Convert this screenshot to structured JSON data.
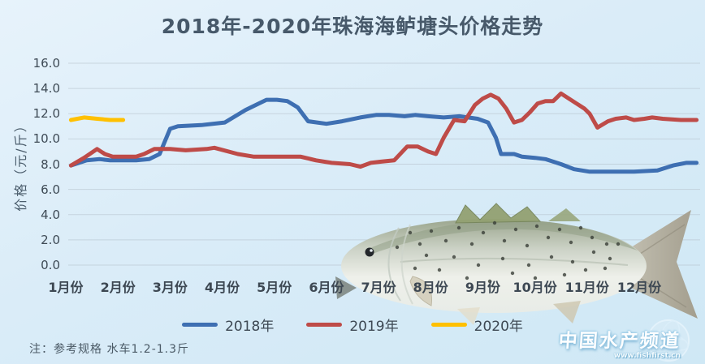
{
  "title": "2018年-2020年珠海海鲈塘头价格走势",
  "y_axis": {
    "title": "价格（元/斤）",
    "tick_labels": [
      "16.0",
      "14.0",
      "12.0",
      "10.0",
      "8.0",
      "6.0",
      "4.0",
      "2.0",
      "0.0"
    ],
    "min": 0,
    "max": 16,
    "step": 2
  },
  "x_axis": {
    "labels": [
      "1月份",
      "2月份",
      "3月份",
      "4月份",
      "5月份",
      "6月份",
      "7月份",
      "8月份",
      "9月份",
      "10月份",
      "11月份",
      "12月份"
    ]
  },
  "note": "注：参考规格  水车1.2-1.3斤",
  "watermark": {
    "site_name": "中国水产频道",
    "site_url": "www.fishfirst.cn"
  },
  "chart_data": {
    "type": "line",
    "title": "2018年-2020年珠海海鲈塘头价格走势",
    "ylabel": "价格（元/斤）",
    "x_unit": "month: 1 = 1月份 … 12 = 12月份 (sub-month points = within-month dates)",
    "xlim": [
      1,
      13.2
    ],
    "ylim": [
      0,
      16
    ],
    "grid": true,
    "legend_position": "bottom",
    "background_color": "#d9ecf7",
    "gridline_color": "#b3bfc9",
    "series": [
      {
        "name": "2018年",
        "color": "#3E6FB2",
        "points": [
          [
            1.1,
            7.9
          ],
          [
            1.4,
            8.3
          ],
          [
            1.65,
            8.4
          ],
          [
            1.85,
            8.3
          ],
          [
            2.1,
            8.3
          ],
          [
            2.35,
            8.3
          ],
          [
            2.6,
            8.4
          ],
          [
            2.8,
            8.8
          ],
          [
            3.0,
            10.8
          ],
          [
            3.15,
            11.0
          ],
          [
            3.6,
            11.1
          ],
          [
            4.05,
            11.3
          ],
          [
            4.45,
            12.3
          ],
          [
            4.85,
            13.1
          ],
          [
            5.05,
            13.1
          ],
          [
            5.25,
            13.0
          ],
          [
            5.45,
            12.5
          ],
          [
            5.65,
            11.4
          ],
          [
            6.0,
            11.2
          ],
          [
            6.3,
            11.4
          ],
          [
            6.65,
            11.7
          ],
          [
            6.95,
            11.9
          ],
          [
            7.2,
            11.9
          ],
          [
            7.5,
            11.8
          ],
          [
            7.7,
            11.9
          ],
          [
            7.95,
            11.8
          ],
          [
            8.25,
            11.7
          ],
          [
            8.55,
            11.8
          ],
          [
            8.9,
            11.6
          ],
          [
            9.1,
            11.3
          ],
          [
            9.25,
            10.1
          ],
          [
            9.35,
            8.8
          ],
          [
            9.6,
            8.8
          ],
          [
            9.75,
            8.6
          ],
          [
            10.0,
            8.5
          ],
          [
            10.2,
            8.4
          ],
          [
            10.5,
            8.0
          ],
          [
            10.75,
            7.6
          ],
          [
            11.05,
            7.4
          ],
          [
            11.4,
            7.4
          ],
          [
            11.9,
            7.4
          ],
          [
            12.35,
            7.5
          ],
          [
            12.65,
            7.9
          ],
          [
            12.9,
            8.1
          ],
          [
            13.1,
            8.1
          ]
        ]
      },
      {
        "name": "2019年",
        "color": "#BE4B48",
        "points": [
          [
            1.1,
            7.9
          ],
          [
            1.35,
            8.5
          ],
          [
            1.6,
            9.2
          ],
          [
            1.75,
            8.8
          ],
          [
            1.9,
            8.6
          ],
          [
            2.15,
            8.6
          ],
          [
            2.35,
            8.6
          ],
          [
            2.5,
            8.8
          ],
          [
            2.7,
            9.2
          ],
          [
            3.0,
            9.2
          ],
          [
            3.3,
            9.1
          ],
          [
            3.7,
            9.2
          ],
          [
            3.85,
            9.3
          ],
          [
            4.3,
            8.8
          ],
          [
            4.6,
            8.6
          ],
          [
            5.1,
            8.6
          ],
          [
            5.5,
            8.6
          ],
          [
            5.8,
            8.3
          ],
          [
            6.1,
            8.1
          ],
          [
            6.45,
            8.0
          ],
          [
            6.65,
            7.8
          ],
          [
            6.85,
            8.1
          ],
          [
            7.05,
            8.2
          ],
          [
            7.3,
            8.3
          ],
          [
            7.55,
            9.4
          ],
          [
            7.75,
            9.4
          ],
          [
            7.95,
            9.0
          ],
          [
            8.1,
            8.8
          ],
          [
            8.25,
            10.1
          ],
          [
            8.45,
            11.5
          ],
          [
            8.65,
            11.4
          ],
          [
            8.85,
            12.7
          ],
          [
            9.0,
            13.2
          ],
          [
            9.15,
            13.5
          ],
          [
            9.3,
            13.2
          ],
          [
            9.45,
            12.4
          ],
          [
            9.6,
            11.3
          ],
          [
            9.75,
            11.5
          ],
          [
            9.9,
            12.1
          ],
          [
            10.05,
            12.8
          ],
          [
            10.2,
            13.0
          ],
          [
            10.35,
            13.0
          ],
          [
            10.5,
            13.6
          ],
          [
            10.8,
            12.8
          ],
          [
            10.95,
            12.4
          ],
          [
            11.05,
            12.0
          ],
          [
            11.2,
            10.9
          ],
          [
            11.4,
            11.4
          ],
          [
            11.55,
            11.6
          ],
          [
            11.75,
            11.7
          ],
          [
            11.9,
            11.5
          ],
          [
            12.1,
            11.6
          ],
          [
            12.25,
            11.7
          ],
          [
            12.45,
            11.6
          ],
          [
            12.8,
            11.5
          ],
          [
            13.1,
            11.5
          ]
        ]
      },
      {
        "name": "2020年",
        "color": "#FFC000",
        "points": [
          [
            1.1,
            11.5
          ],
          [
            1.35,
            11.7
          ],
          [
            1.6,
            11.6
          ],
          [
            1.85,
            11.5
          ],
          [
            2.1,
            11.5
          ]
        ]
      }
    ]
  }
}
